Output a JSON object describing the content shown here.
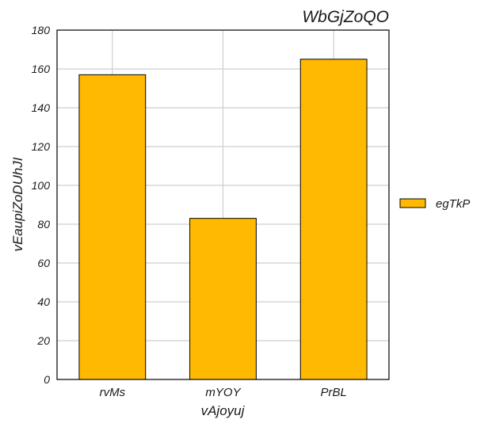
{
  "chart_data": {
    "type": "bar",
    "title": "WbGjZoQO",
    "xlabel": "vAjoyuj",
    "ylabel": "vEaupiZoDUhJI",
    "categories": [
      "rvMs",
      "mYOY",
      "PrBL"
    ],
    "series": [
      {
        "name": "egTkP",
        "values": [
          157,
          83,
          165
        ],
        "color": "#ffb900"
      }
    ],
    "ylim": [
      0,
      180
    ],
    "yticks": [
      0,
      20,
      40,
      60,
      80,
      100,
      120,
      140,
      160,
      180
    ],
    "grid": true,
    "legend_position": "right"
  },
  "colors": {
    "bar_fill": "#ffb900",
    "bar_stroke": "#000000",
    "grid": "#cfcfcf",
    "axis": "#000000",
    "text": "#1a1a1a"
  }
}
